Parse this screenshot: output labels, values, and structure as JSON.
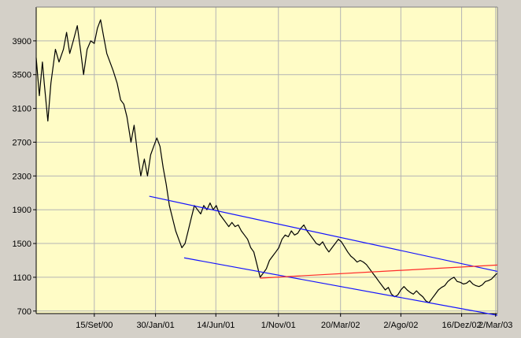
{
  "colors": {
    "window_background": "#d4d0c8",
    "plot_background": "#fffcc6",
    "grid": "#b4b4b4",
    "price_line": "#000000",
    "channel_lines": "#1414ff",
    "support_line": "#ff2a2a"
  },
  "chart_data": {
    "type": "line",
    "title": "",
    "xlabel": "",
    "ylabel": "",
    "grid": true,
    "legend": "none",
    "ylim": [
      670,
      4300
    ],
    "yticks": [
      700,
      1100,
      1500,
      1900,
      2300,
      2700,
      3100,
      3500,
      3900
    ],
    "xlim": [
      "2000-05-08",
      "2003-03-06"
    ],
    "xticks": [
      {
        "date": "2000-09-15",
        "label": "15/Set/00"
      },
      {
        "date": "2001-01-30",
        "label": "30/Jan/01"
      },
      {
        "date": "2001-06-14",
        "label": "14/Jun/01"
      },
      {
        "date": "2001-11-01",
        "label": "1/Nov/01"
      },
      {
        "date": "2002-03-20",
        "label": "20/Mar/02"
      },
      {
        "date": "2002-08-02",
        "label": "2/Ago/02"
      },
      {
        "date": "2002-12-16",
        "label": "16/Dez/02"
      },
      {
        "date": "2003-03-02",
        "label": "2/Mar/03"
      }
    ],
    "series": [
      {
        "values": [
          [
            "2000-05-08",
            3700
          ],
          [
            "2000-05-15",
            3250
          ],
          [
            "2000-05-22",
            3650
          ],
          [
            "2000-05-26",
            3400
          ],
          [
            "2000-06-03",
            2950
          ],
          [
            "2000-06-10",
            3400
          ],
          [
            "2000-06-20",
            3800
          ],
          [
            "2000-06-28",
            3650
          ],
          [
            "2000-07-08",
            3800
          ],
          [
            "2000-07-15",
            4000
          ],
          [
            "2000-07-22",
            3750
          ],
          [
            "2000-07-30",
            3900
          ],
          [
            "2000-08-08",
            4080
          ],
          [
            "2000-08-15",
            3800
          ],
          [
            "2000-08-22",
            3500
          ],
          [
            "2000-08-30",
            3800
          ],
          [
            "2000-09-07",
            3900
          ],
          [
            "2000-09-15",
            3870
          ],
          [
            "2000-09-22",
            4050
          ],
          [
            "2000-09-29",
            4150
          ],
          [
            "2000-10-06",
            3950
          ],
          [
            "2000-10-13",
            3750
          ],
          [
            "2000-10-20",
            3650
          ],
          [
            "2000-10-27",
            3550
          ],
          [
            "2000-11-05",
            3400
          ],
          [
            "2000-11-13",
            3200
          ],
          [
            "2000-11-20",
            3150
          ],
          [
            "2000-11-27",
            3000
          ],
          [
            "2000-12-06",
            2700
          ],
          [
            "2000-12-13",
            2900
          ],
          [
            "2000-12-20",
            2600
          ],
          [
            "2000-12-28",
            2300
          ],
          [
            "2001-01-05",
            2500
          ],
          [
            "2001-01-12",
            2300
          ],
          [
            "2001-01-19",
            2550
          ],
          [
            "2001-01-26",
            2650
          ],
          [
            "2001-02-02",
            2750
          ],
          [
            "2001-02-09",
            2650
          ],
          [
            "2001-02-16",
            2400
          ],
          [
            "2001-02-23",
            2200
          ],
          [
            "2001-03-02",
            1950
          ],
          [
            "2001-03-09",
            1800
          ],
          [
            "2001-03-16",
            1650
          ],
          [
            "2001-03-23",
            1550
          ],
          [
            "2001-03-30",
            1450
          ],
          [
            "2001-04-06",
            1500
          ],
          [
            "2001-04-13",
            1650
          ],
          [
            "2001-04-20",
            1800
          ],
          [
            "2001-04-27",
            1950
          ],
          [
            "2001-05-04",
            1900
          ],
          [
            "2001-05-11",
            1850
          ],
          [
            "2001-05-18",
            1950
          ],
          [
            "2001-05-25",
            1900
          ],
          [
            "2001-06-01",
            1980
          ],
          [
            "2001-06-08",
            1900
          ],
          [
            "2001-06-15",
            1950
          ],
          [
            "2001-06-22",
            1850
          ],
          [
            "2001-06-29",
            1800
          ],
          [
            "2001-07-06",
            1750
          ],
          [
            "2001-07-13",
            1700
          ],
          [
            "2001-07-20",
            1750
          ],
          [
            "2001-07-27",
            1700
          ],
          [
            "2001-08-03",
            1720
          ],
          [
            "2001-08-10",
            1650
          ],
          [
            "2001-08-17",
            1600
          ],
          [
            "2001-08-24",
            1550
          ],
          [
            "2001-08-31",
            1450
          ],
          [
            "2001-09-07",
            1400
          ],
          [
            "2001-09-14",
            1250
          ],
          [
            "2001-09-21",
            1100
          ],
          [
            "2001-09-28",
            1150
          ],
          [
            "2001-10-05",
            1200
          ],
          [
            "2001-10-12",
            1300
          ],
          [
            "2001-10-19",
            1350
          ],
          [
            "2001-10-26",
            1400
          ],
          [
            "2001-11-02",
            1450
          ],
          [
            "2001-11-09",
            1550
          ],
          [
            "2001-11-16",
            1600
          ],
          [
            "2001-11-23",
            1580
          ],
          [
            "2001-11-30",
            1650
          ],
          [
            "2001-12-07",
            1600
          ],
          [
            "2001-12-14",
            1620
          ],
          [
            "2001-12-21",
            1680
          ],
          [
            "2001-12-28",
            1720
          ],
          [
            "2002-01-04",
            1650
          ],
          [
            "2002-01-11",
            1600
          ],
          [
            "2002-01-18",
            1550
          ],
          [
            "2002-01-25",
            1500
          ],
          [
            "2002-02-01",
            1480
          ],
          [
            "2002-02-08",
            1520
          ],
          [
            "2002-02-15",
            1450
          ],
          [
            "2002-02-22",
            1400
          ],
          [
            "2002-03-01",
            1450
          ],
          [
            "2002-03-08",
            1500
          ],
          [
            "2002-03-15",
            1550
          ],
          [
            "2002-03-22",
            1520
          ],
          [
            "2002-03-29",
            1460
          ],
          [
            "2002-04-05",
            1400
          ],
          [
            "2002-04-12",
            1350
          ],
          [
            "2002-04-19",
            1320
          ],
          [
            "2002-04-26",
            1280
          ],
          [
            "2002-05-03",
            1300
          ],
          [
            "2002-05-10",
            1280
          ],
          [
            "2002-05-17",
            1250
          ],
          [
            "2002-05-24",
            1200
          ],
          [
            "2002-05-31",
            1150
          ],
          [
            "2002-06-07",
            1100
          ],
          [
            "2002-06-14",
            1050
          ],
          [
            "2002-06-21",
            1000
          ],
          [
            "2002-06-28",
            950
          ],
          [
            "2002-07-05",
            980
          ],
          [
            "2002-07-12",
            900
          ],
          [
            "2002-07-19",
            870
          ],
          [
            "2002-07-26",
            890
          ],
          [
            "2002-08-02",
            950
          ],
          [
            "2002-08-09",
            990
          ],
          [
            "2002-08-16",
            950
          ],
          [
            "2002-08-23",
            920
          ],
          [
            "2002-08-30",
            900
          ],
          [
            "2002-09-06",
            940
          ],
          [
            "2002-09-13",
            900
          ],
          [
            "2002-09-20",
            870
          ],
          [
            "2002-09-27",
            820
          ],
          [
            "2002-10-04",
            800
          ],
          [
            "2002-10-11",
            850
          ],
          [
            "2002-10-18",
            900
          ],
          [
            "2002-10-25",
            950
          ],
          [
            "2002-11-01",
            980
          ],
          [
            "2002-11-08",
            1000
          ],
          [
            "2002-11-15",
            1050
          ],
          [
            "2002-11-22",
            1080
          ],
          [
            "2002-11-29",
            1100
          ],
          [
            "2002-12-06",
            1050
          ],
          [
            "2002-12-13",
            1040
          ],
          [
            "2002-12-20",
            1020
          ],
          [
            "2002-12-27",
            1030
          ],
          [
            "2003-01-03",
            1060
          ],
          [
            "2003-01-10",
            1020
          ],
          [
            "2003-01-17",
            1000
          ],
          [
            "2003-01-24",
            990
          ],
          [
            "2003-01-31",
            1010
          ],
          [
            "2003-02-07",
            1050
          ],
          [
            "2003-02-14",
            1060
          ],
          [
            "2003-02-21",
            1080
          ],
          [
            "2003-02-28",
            1120
          ],
          [
            "2003-03-06",
            1150
          ]
        ]
      }
    ],
    "trendlines": [
      {
        "name": "channel-upper",
        "color": "#1414ff",
        "from": [
          "2001-01-16",
          2060
        ],
        "to": [
          "2003-03-06",
          1170
        ]
      },
      {
        "name": "channel-lower",
        "color": "#1414ff",
        "from": [
          "2001-04-04",
          1330
        ],
        "to": [
          "2003-03-06",
          650
        ]
      },
      {
        "name": "support",
        "color": "#ff2a2a",
        "from": [
          "2001-09-21",
          1090
        ],
        "to": [
          "2003-03-06",
          1245
        ]
      }
    ]
  }
}
